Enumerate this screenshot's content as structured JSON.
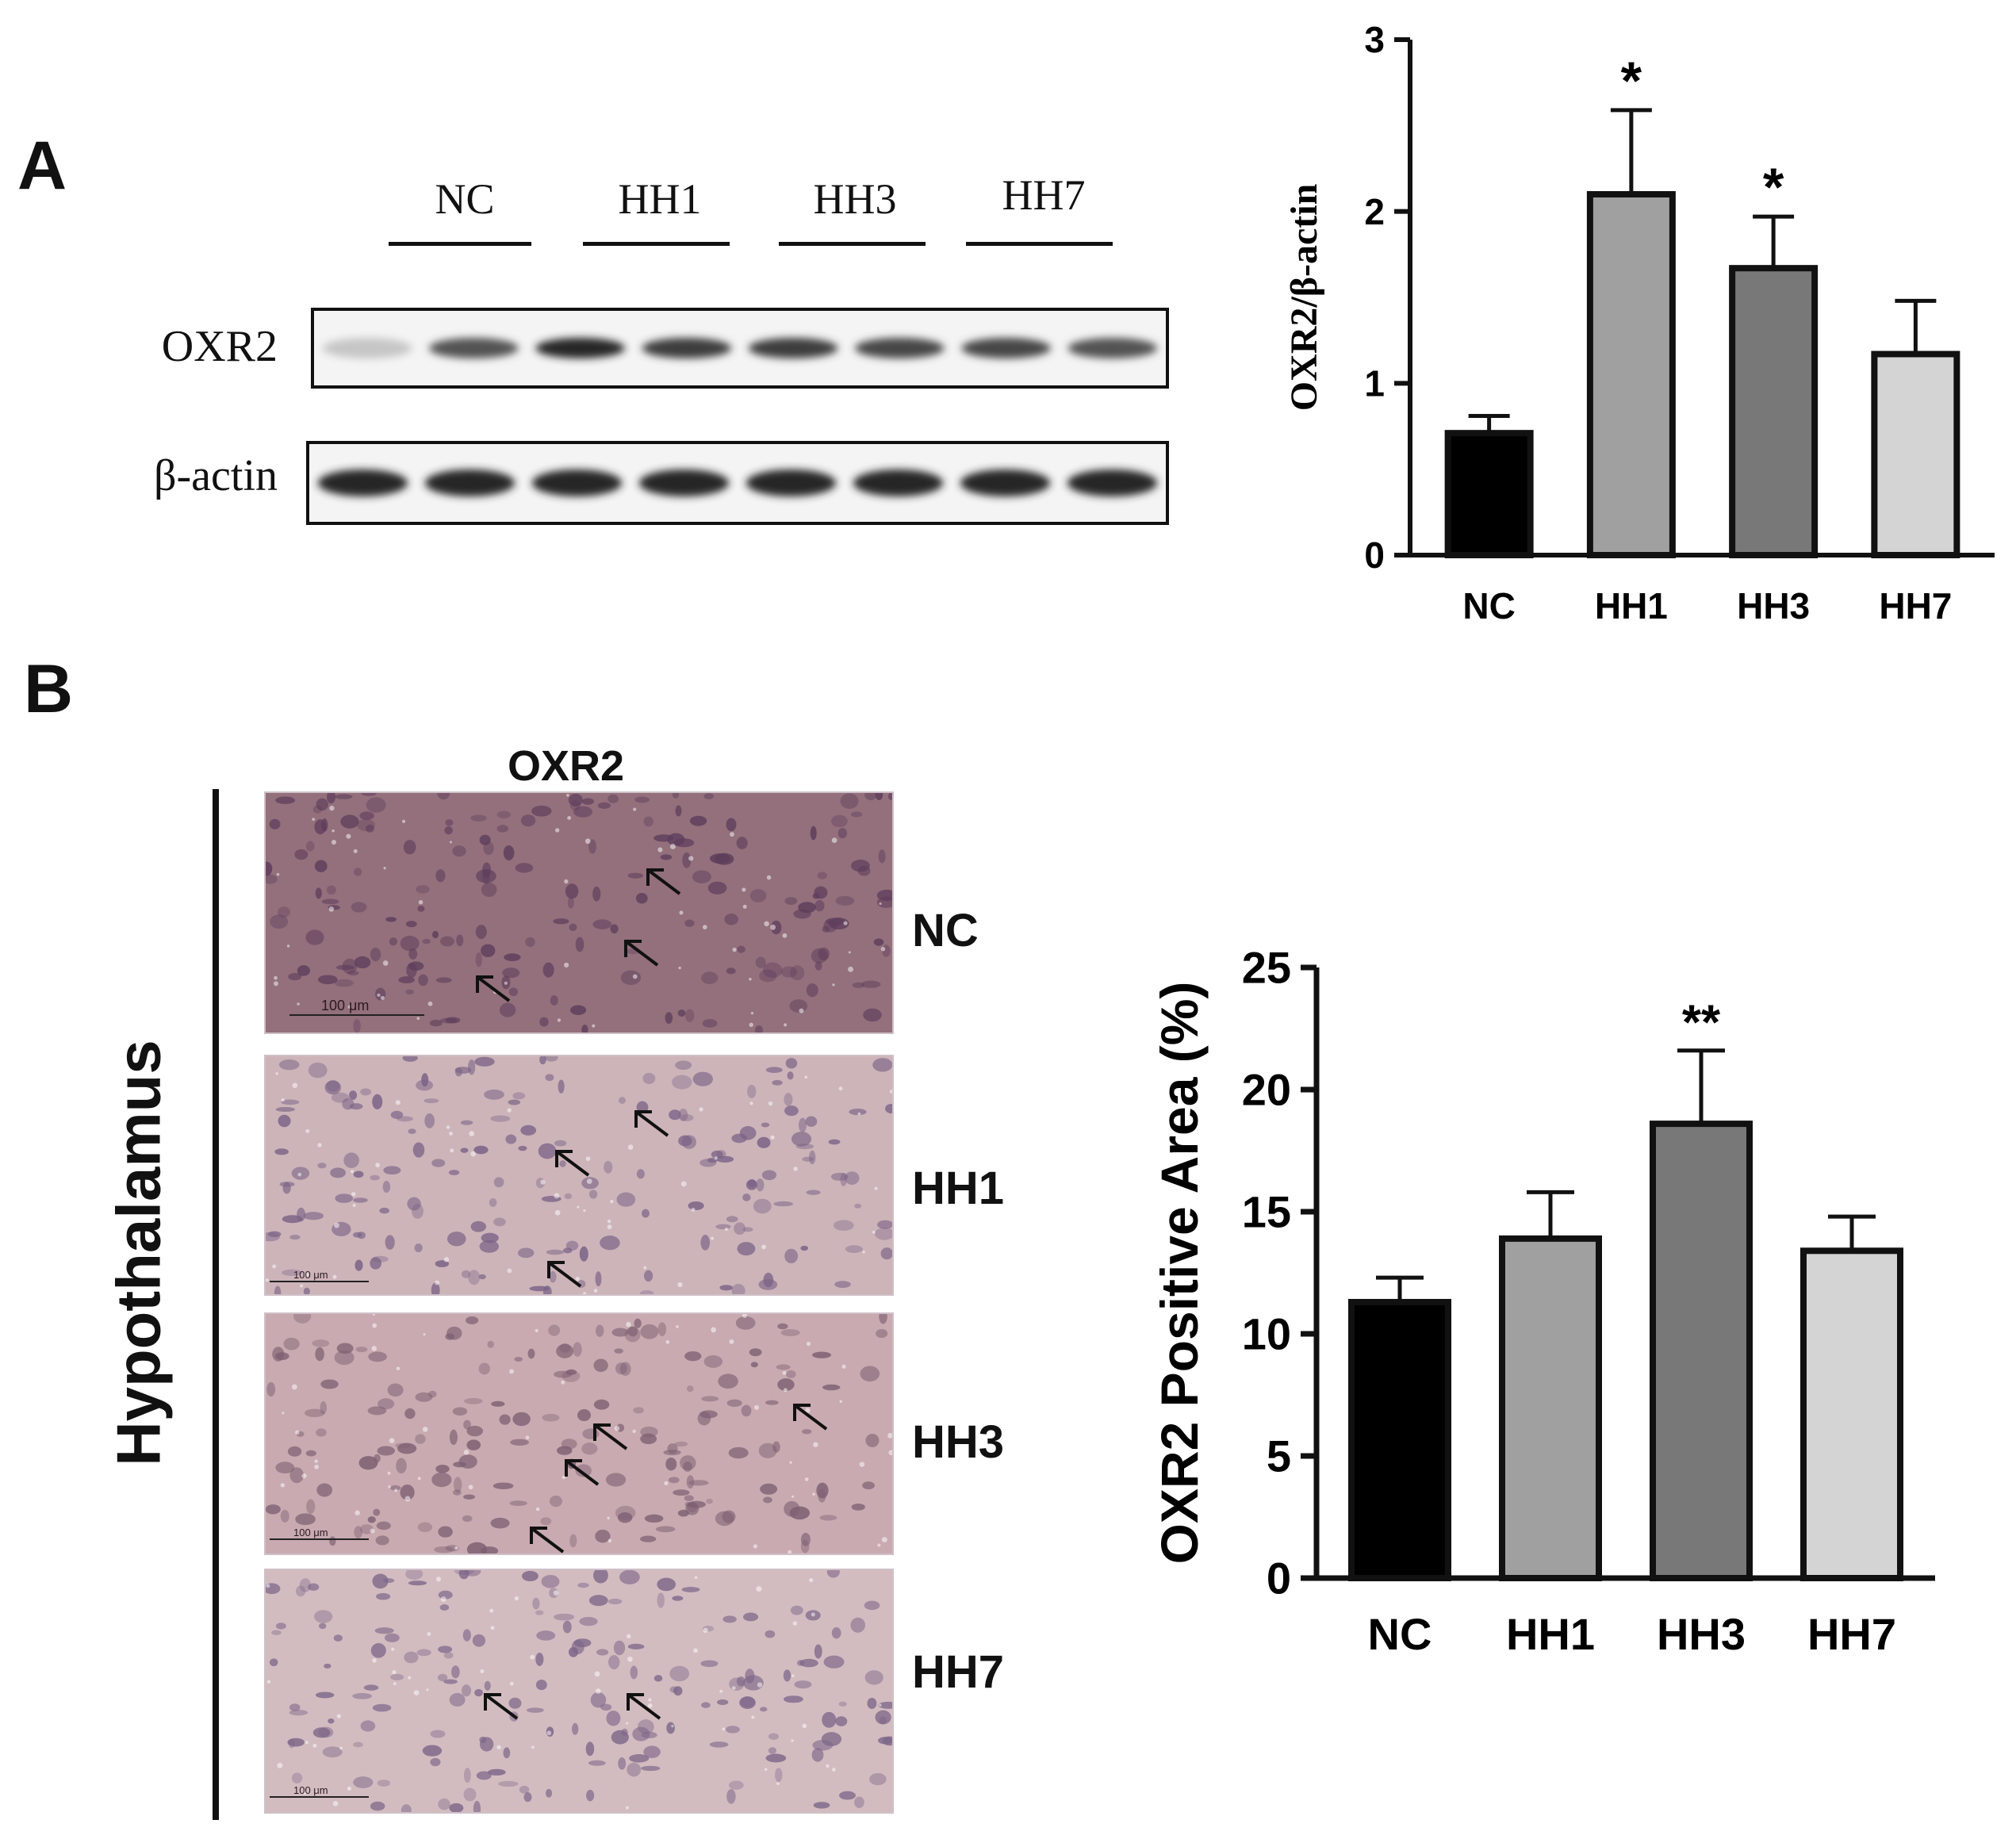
{
  "panel_a": {
    "letter": "A",
    "blot": {
      "groups": [
        "NC",
        "HH1",
        "HH3",
        "HH7"
      ],
      "rows": [
        {
          "label": "OXR2",
          "band_intensity": [
            0.25,
            0.75,
            0.95,
            0.85,
            0.85,
            0.8,
            0.8,
            0.75
          ]
        },
        {
          "label": "β-actin",
          "band_intensity": [
            0.95,
            0.95,
            0.95,
            0.95,
            0.95,
            0.95,
            0.95,
            0.95
          ]
        }
      ]
    }
  },
  "panel_b": {
    "letter": "B",
    "ihc": {
      "title": "OXR2",
      "region": "Hypothalamus",
      "conditions": [
        "NC",
        "HH1",
        "HH3",
        "HH7"
      ],
      "scale_bar": "100 μm"
    }
  },
  "chart_data": [
    {
      "type": "bar",
      "categories": [
        "NC",
        "HH1",
        "HH3",
        "HH7"
      ],
      "values": [
        0.71,
        2.1,
        1.67,
        1.17
      ],
      "errors": [
        0.1,
        0.49,
        0.3,
        0.31
      ],
      "significance": [
        "",
        "*",
        "*",
        ""
      ],
      "colors": [
        "#000000",
        "#a0a0a0",
        "#787878",
        "#d4d4d4"
      ],
      "ylabel": "OXR2/β-actin",
      "ylim": [
        0,
        3
      ],
      "yticks": [
        0,
        1,
        2,
        3
      ]
    },
    {
      "type": "bar",
      "categories": [
        "NC",
        "HH1",
        "HH3",
        "HH7"
      ],
      "values": [
        11.3,
        13.9,
        18.6,
        13.4
      ],
      "errors": [
        1.0,
        1.9,
        3.0,
        1.4
      ],
      "significance": [
        "",
        "",
        "**",
        ""
      ],
      "colors": [
        "#000000",
        "#a0a0a0",
        "#787878",
        "#d4d4d4"
      ],
      "ylabel": "OXR2 Positive Area (%)",
      "ylim": [
        0,
        25
      ],
      "yticks": [
        0,
        5,
        10,
        15,
        20,
        25
      ]
    }
  ]
}
